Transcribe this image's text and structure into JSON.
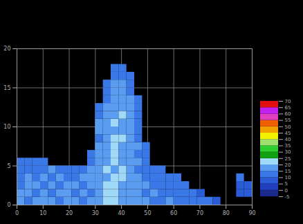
{
  "chart_data": {
    "type": "heatmap",
    "x_bins": [
      0,
      3,
      6,
      9,
      12,
      15,
      18,
      21,
      24,
      27,
      30,
      33,
      36,
      39,
      42,
      45,
      48,
      51,
      54,
      57,
      60,
      63,
      66,
      69,
      72,
      75,
      78,
      81,
      84,
      87,
      90
    ],
    "y_bins": [
      0,
      1,
      2,
      3,
      4,
      5,
      6,
      7,
      8,
      9,
      10,
      11,
      12,
      13,
      14,
      15,
      16,
      17,
      18,
      19,
      20
    ],
    "z": [
      [
        16,
        14,
        18,
        15,
        17,
        13,
        16,
        19,
        14,
        17,
        18,
        22,
        20,
        19,
        17,
        15,
        16,
        14,
        13,
        15,
        12,
        14,
        11,
        12,
        10,
        9,
        null,
        null,
        null,
        null
      ],
      [
        15,
        17,
        13,
        16,
        14,
        18,
        15,
        13,
        16,
        14,
        19,
        21,
        23,
        18,
        16,
        17,
        14,
        15,
        12,
        13,
        14,
        11,
        10,
        9,
        null,
        null,
        null,
        null,
        8,
        7
      ],
      [
        14,
        16,
        15,
        12,
        17,
        14,
        16,
        15,
        13,
        18,
        17,
        20,
        22,
        19,
        18,
        16,
        15,
        13,
        14,
        12,
        11,
        10,
        null,
        null,
        null,
        null,
        null,
        null,
        9,
        8
      ],
      [
        13,
        15,
        14,
        16,
        13,
        15,
        12,
        14,
        15,
        16,
        19,
        18,
        21,
        20,
        17,
        15,
        14,
        12,
        13,
        11,
        10,
        null,
        null,
        null,
        null,
        null,
        null,
        null,
        10,
        null
      ],
      [
        12,
        14,
        13,
        11,
        15,
        12,
        14,
        13,
        12,
        15,
        18,
        20,
        19,
        22,
        16,
        14,
        13,
        11,
        10,
        null,
        null,
        null,
        null,
        null,
        null,
        null,
        null,
        null,
        null,
        null
      ],
      [
        11,
        13,
        12,
        10,
        null,
        null,
        null,
        null,
        null,
        14,
        17,
        19,
        21,
        18,
        17,
        15,
        12,
        null,
        null,
        null,
        null,
        null,
        null,
        null,
        null,
        null,
        null,
        null,
        null,
        null
      ],
      [
        null,
        null,
        null,
        null,
        null,
        null,
        null,
        null,
        null,
        12,
        16,
        18,
        20,
        19,
        16,
        14,
        11,
        null,
        null,
        null,
        null,
        null,
        null,
        null,
        null,
        null,
        null,
        null,
        null,
        null
      ],
      [
        null,
        null,
        null,
        null,
        null,
        null,
        null,
        null,
        null,
        null,
        15,
        17,
        22,
        18,
        17,
        15,
        10,
        null,
        null,
        null,
        null,
        null,
        null,
        null,
        null,
        null,
        null,
        null,
        null,
        null
      ],
      [
        null,
        null,
        null,
        null,
        null,
        null,
        null,
        null,
        null,
        null,
        14,
        18,
        20,
        21,
        16,
        13,
        null,
        null,
        null,
        null,
        null,
        null,
        null,
        null,
        null,
        null,
        null,
        null,
        null,
        null
      ],
      [
        null,
        null,
        null,
        null,
        null,
        null,
        null,
        null,
        null,
        null,
        16,
        17,
        19,
        18,
        17,
        14,
        null,
        null,
        null,
        null,
        null,
        null,
        null,
        null,
        null,
        null,
        null,
        null,
        null,
        null
      ],
      [
        null,
        null,
        null,
        null,
        null,
        null,
        null,
        null,
        null,
        null,
        15,
        19,
        22,
        17,
        18,
        13,
        null,
        null,
        null,
        null,
        null,
        null,
        null,
        null,
        null,
        null,
        null,
        null,
        null,
        null
      ],
      [
        null,
        null,
        null,
        null,
        null,
        null,
        null,
        null,
        null,
        null,
        13,
        16,
        18,
        20,
        15,
        12,
        null,
        null,
        null,
        null,
        null,
        null,
        null,
        null,
        null,
        null,
        null,
        null,
        null,
        null
      ],
      [
        null,
        null,
        null,
        null,
        null,
        null,
        null,
        null,
        null,
        null,
        12,
        15,
        17,
        19,
        16,
        11,
        null,
        null,
        null,
        null,
        null,
        null,
        null,
        null,
        null,
        null,
        null,
        null,
        null,
        null
      ],
      [
        null,
        null,
        null,
        null,
        null,
        null,
        null,
        null,
        null,
        null,
        null,
        14,
        16,
        18,
        15,
        12,
        null,
        null,
        null,
        null,
        null,
        null,
        null,
        null,
        null,
        null,
        null,
        null,
        null,
        null
      ],
      [
        null,
        null,
        null,
        null,
        null,
        null,
        null,
        null,
        null,
        null,
        null,
        13,
        17,
        16,
        14,
        null,
        null,
        null,
        null,
        null,
        null,
        null,
        null,
        null,
        null,
        null,
        null,
        null,
        null,
        null
      ],
      [
        null,
        null,
        null,
        null,
        null,
        null,
        null,
        null,
        null,
        null,
        null,
        12,
        15,
        17,
        13,
        null,
        null,
        null,
        null,
        null,
        null,
        null,
        null,
        null,
        null,
        null,
        null,
        null,
        null,
        null
      ],
      [
        null,
        null,
        null,
        null,
        null,
        null,
        null,
        null,
        null,
        null,
        null,
        null,
        13,
        14,
        12,
        null,
        null,
        null,
        null,
        null,
        null,
        null,
        null,
        null,
        null,
        null,
        null,
        null,
        null,
        null
      ],
      [
        null,
        null,
        null,
        null,
        null,
        null,
        null,
        null,
        null,
        null,
        null,
        null,
        11,
        12,
        null,
        null,
        null,
        null,
        null,
        null,
        null,
        null,
        null,
        null,
        null,
        null,
        null,
        null,
        null,
        null
      ],
      [
        null,
        null,
        null,
        null,
        null,
        null,
        null,
        null,
        null,
        null,
        null,
        null,
        null,
        null,
        null,
        null,
        null,
        null,
        null,
        null,
        null,
        null,
        null,
        null,
        null,
        null,
        null,
        null,
        null,
        null
      ],
      [
        null,
        null,
        null,
        null,
        null,
        null,
        null,
        null,
        null,
        null,
        null,
        null,
        null,
        null,
        null,
        null,
        null,
        null,
        null,
        null,
        null,
        null,
        null,
        null,
        null,
        null,
        null,
        null,
        null,
        null
      ]
    ],
    "xlim": [
      0,
      90
    ],
    "xticks": [
      0,
      10,
      20,
      30,
      40,
      50,
      60,
      70,
      80,
      90
    ],
    "ylim": [
      0,
      20
    ],
    "yticks": [
      0,
      5,
      10,
      15,
      20
    ],
    "grid": true,
    "colorbar_lim": [
      -5,
      70
    ],
    "colorbar_ticks": [
      -5,
      0,
      5,
      10,
      15,
      20,
      25,
      30,
      35,
      40,
      45,
      50,
      55,
      60,
      65,
      70
    ],
    "colors": [
      "#1a2a8a",
      "#2040c0",
      "#2a5cd8",
      "#3a78e8",
      "#5a9cf0",
      "#a0d8f8",
      "#10a010",
      "#30d030",
      "#a0e070",
      "#f0f000",
      "#f0a000",
      "#f06000",
      "#e040c0",
      "#c020f0",
      "#e01010"
    ]
  }
}
